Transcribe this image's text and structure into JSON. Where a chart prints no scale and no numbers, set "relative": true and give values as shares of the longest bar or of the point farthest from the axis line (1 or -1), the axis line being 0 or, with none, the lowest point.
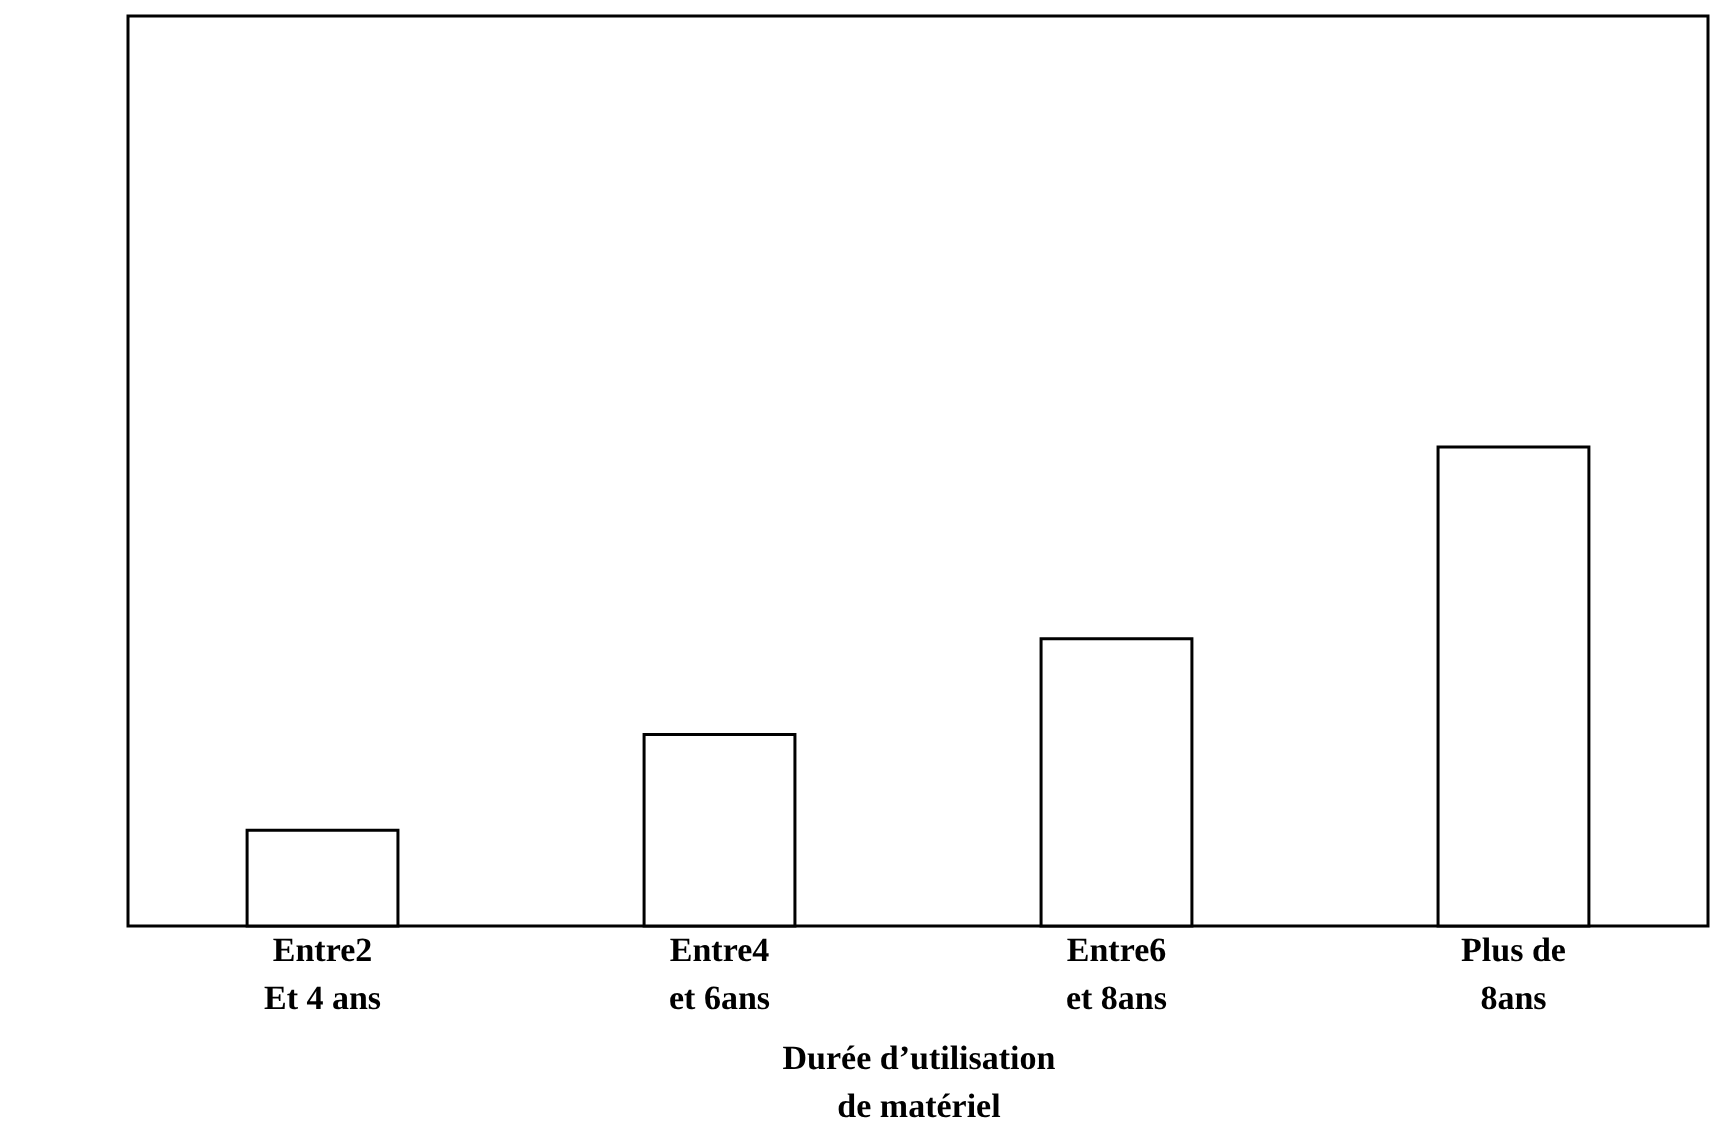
{
  "chart_data": {
    "type": "bar",
    "relative": true,
    "xlabel": "Durée d’utilisation de matériel",
    "categories": [
      "Entre2 Et 4 ans",
      "Entre4 et 6ans",
      "Entre6 et 8ans",
      "Plus de 8ans"
    ],
    "values": [
      0.2,
      0.4,
      0.6,
      1
    ],
    "color": "#ffffff",
    "grid": false
  }
}
